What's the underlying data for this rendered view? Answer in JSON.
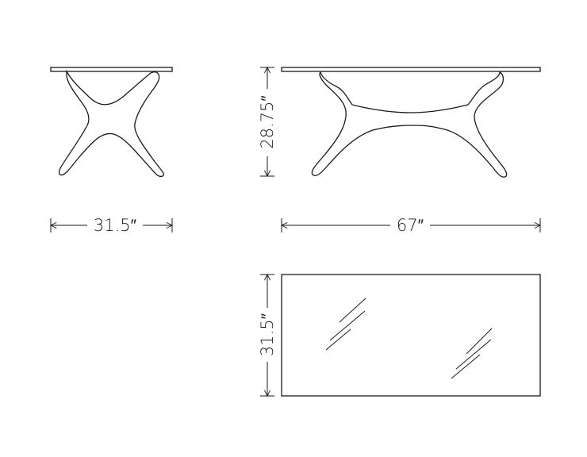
{
  "drawing": {
    "side_view": {
      "width_label": "31.5″"
    },
    "front_view": {
      "height_label": "28.75″",
      "length_label": "67″"
    },
    "top_view": {
      "depth_label": "31.5″"
    }
  },
  "colors": {
    "ink": "#1a1a1a",
    "background": "#ffffff"
  }
}
